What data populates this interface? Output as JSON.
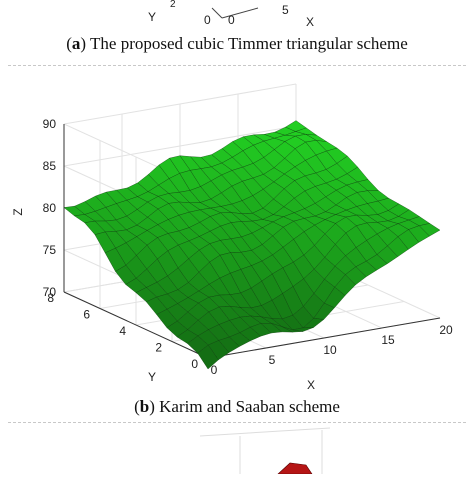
{
  "captions": {
    "a": {
      "letter": "a",
      "text": "The proposed cubic Timmer triangular scheme"
    },
    "b": {
      "letter": "b",
      "text": "Karim and Saaban scheme"
    }
  },
  "top_fragment": {
    "y_label": "Y",
    "x_label": "X",
    "ticks": {
      "y0": "0",
      "x0": "0",
      "x5": "5",
      "z_partial": "2"
    }
  },
  "chart_data": [
    {
      "type": "surface",
      "title": "",
      "xlabel": "X",
      "ylabel": "Y",
      "zlabel": "Z",
      "xlim": [
        0,
        20
      ],
      "ylim": [
        0,
        8
      ],
      "zlim": [
        70,
        90
      ],
      "xticks": [
        "0",
        "5",
        "10",
        "15",
        "20"
      ],
      "yticks": [
        "0",
        "2",
        "4",
        "6",
        "8"
      ],
      "zticks": [
        "70",
        "75",
        "80",
        "85",
        "90"
      ],
      "grid": true,
      "surface_color": "#1fb61f",
      "edge_color": "#0a3d0a",
      "corner_heights": {
        "x0_y8": 80.5,
        "x20_y8": 85.5,
        "x20_y0": 80.5,
        "x0_y0": 68.5
      }
    }
  ]
}
